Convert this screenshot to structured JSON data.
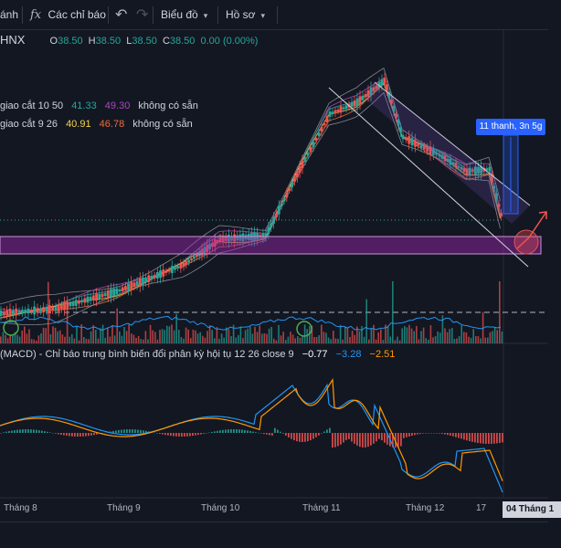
{
  "toolbar": {
    "partial_label": "ánh",
    "fx_icon": "fx",
    "indicators_label": "Các chỉ báo",
    "undo_icon": "↶",
    "redo_icon": "↷",
    "chart_type_label": "Biểu đồ",
    "profile_label": "Hồ sơ"
  },
  "symbol": {
    "exchange": "HNX",
    "o_label": "O",
    "o_value": "38.50",
    "h_label": "H",
    "h_value": "38.50",
    "l_label": "L",
    "l_value": "38.50",
    "c_label": "C",
    "c_value": "38.50",
    "change": "0.00 (0.00%)"
  },
  "indicator1": {
    "name": "giao cắt 10 50",
    "v1": "41.33",
    "v2": "49.30",
    "na": "không có sẵn",
    "c1": "#26a69a",
    "c2": "#ab47bc"
  },
  "indicator2": {
    "name": "giao cắt 9 26",
    "v1": "40.91",
    "v2": "46.78",
    "na": "không có sẵn",
    "c1": "#f5d547",
    "c2": "#ef6c3a"
  },
  "badge": "11 thanh, 3n 5g",
  "macd": {
    "title": "(MACD) - Chỉ báo trung bình biến đổi phân kỳ hội tụ 12 26 close 9",
    "v1": "−0.77",
    "v2": "−3.28",
    "v3": "−2.51",
    "c1": "#ffffff",
    "c2": "#2196f3",
    "c3": "#ff9800"
  },
  "xaxis": {
    "t8": "Tháng 8",
    "t9": "Tháng 9",
    "t10": "Tháng 10",
    "t11": "Tháng 11",
    "t12": "Tháng 12",
    "d17": "17",
    "current": "04 Tháng 1"
  },
  "colors": {
    "up": "#26a69a",
    "down": "#ef5350",
    "bg": "#131722",
    "macd": "#2196f3",
    "signal": "#ff9800",
    "zone": "#9c27b0"
  }
}
